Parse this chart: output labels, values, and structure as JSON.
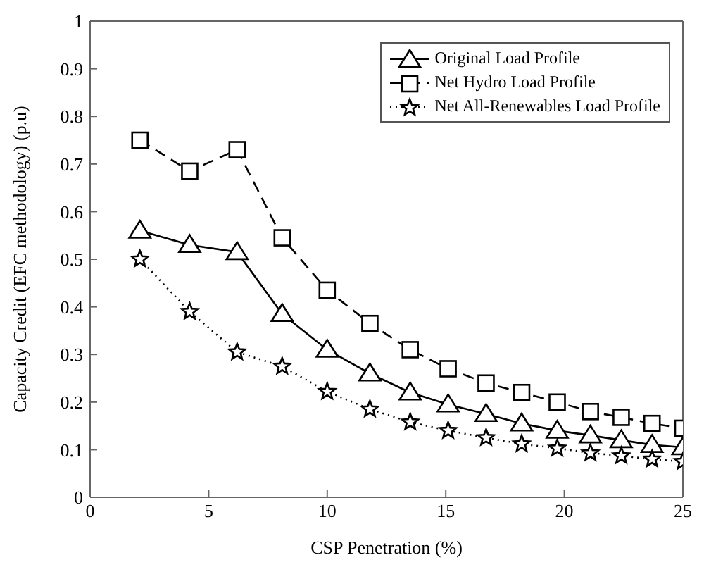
{
  "chart_data": {
    "type": "line",
    "xlabel": "CSP Penetration (%)",
    "ylabel": "Capacity Credit (EFC methodology) (p.u)",
    "x": [
      2.1,
      4.2,
      6.2,
      8.1,
      10,
      11.8,
      13.5,
      15.1,
      16.7,
      18.2,
      19.7,
      21.1,
      22.4,
      23.7,
      25
    ],
    "series": [
      {
        "name": "Original Load Profile",
        "color": "#000000",
        "marker": "triangle",
        "line_style": "solid",
        "values": [
          0.56,
          0.53,
          0.515,
          0.385,
          0.31,
          0.26,
          0.22,
          0.195,
          0.175,
          0.155,
          0.14,
          0.13,
          0.12,
          0.11,
          0.105
        ]
      },
      {
        "name": "Net Hydro Load Profile",
        "color": "#000000",
        "marker": "square",
        "line_style": "dashed",
        "values": [
          0.75,
          0.685,
          0.73,
          0.545,
          0.435,
          0.365,
          0.31,
          0.27,
          0.24,
          0.22,
          0.2,
          0.18,
          0.168,
          0.155,
          0.145
        ]
      },
      {
        "name": "Net All-Renewables Load Profile",
        "color": "#000000",
        "marker": "star",
        "line_style": "dotted",
        "values": [
          0.5,
          0.39,
          0.305,
          0.275,
          0.222,
          0.185,
          0.158,
          0.14,
          0.125,
          0.112,
          0.103,
          0.093,
          0.087,
          0.08,
          0.075
        ]
      }
    ],
    "xlim": [
      0,
      25
    ],
    "xticks": [
      0,
      5,
      10,
      15,
      20,
      25
    ],
    "ylim": [
      0,
      1
    ],
    "yticks": [
      0,
      0.1,
      0.2,
      0.3,
      0.4,
      0.5,
      0.6,
      0.7,
      0.8,
      0.9,
      1
    ],
    "grid": false,
    "legend": "top right"
  }
}
